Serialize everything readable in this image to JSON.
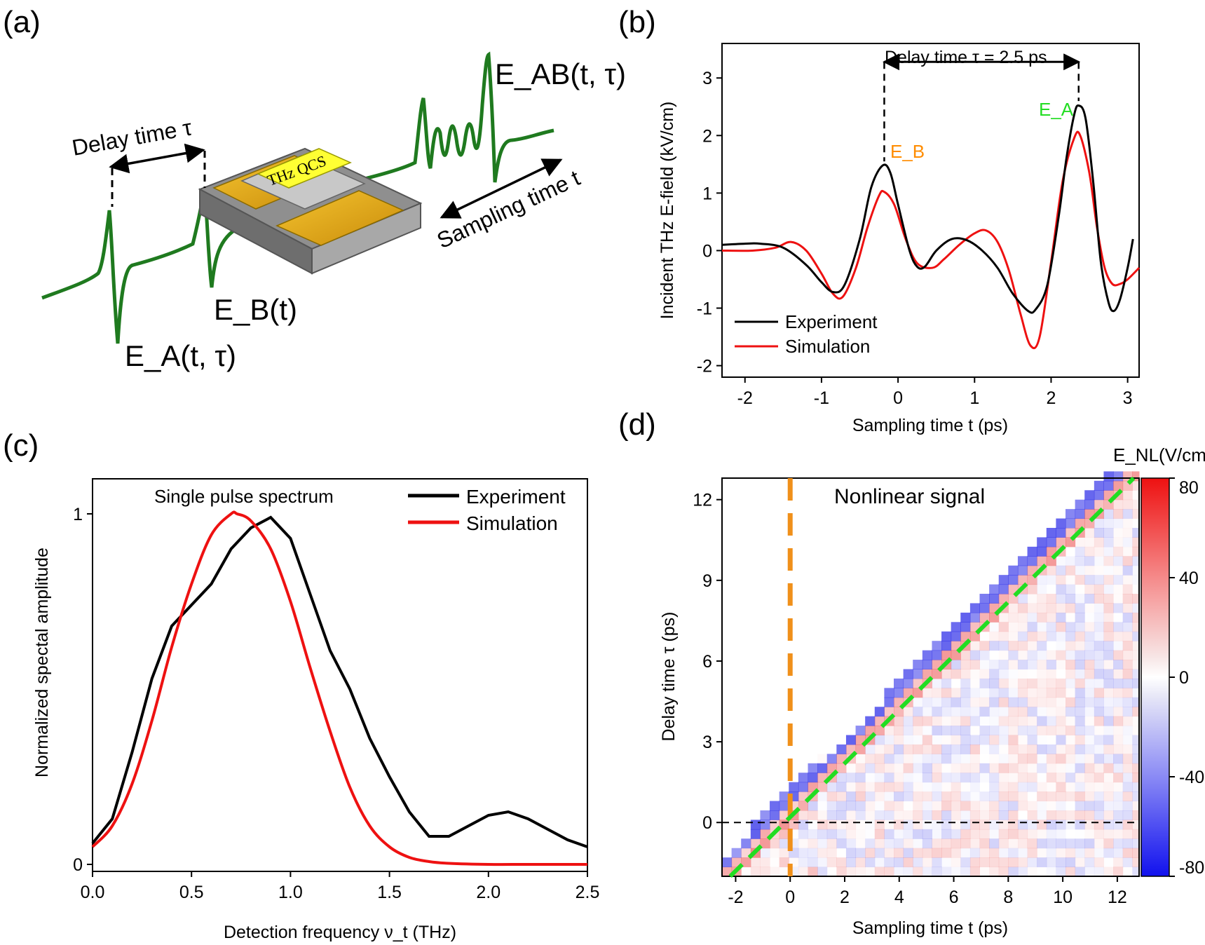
{
  "panel_labels": [
    "(a)",
    "(b)",
    "(c)",
    "(d)"
  ],
  "schematic": {
    "device_label": "THz QCS",
    "delay_label": "Delay time τ",
    "sampling_label": "Sampling time t",
    "eab_label": "E_AB(t, τ)",
    "ea_label": "E_A(t, τ)",
    "eb_label": "E_B(t)"
  },
  "chart_data": [
    {
      "id": "b",
      "type": "line",
      "xlabel": "Sampling time t (ps)",
      "ylabel": "Incident THz E-field (kV/cm)",
      "xlim": [
        -2.3,
        3.15
      ],
      "ylim": [
        -2.2,
        3.6
      ],
      "xticks": [
        -2,
        -1,
        0,
        1,
        2,
        3
      ],
      "yticks": [
        -2,
        -1,
        0,
        1,
        2,
        3
      ],
      "annotation": "Delay time τ = 2.5 ps",
      "peak_labels": [
        "E_B",
        "E_A"
      ],
      "series": [
        {
          "name": "Experiment",
          "color": "#000000",
          "x": [
            -2.3,
            -2.0,
            -1.8,
            -1.5,
            -1.2,
            -1.0,
            -0.85,
            -0.7,
            -0.5,
            -0.35,
            -0.2,
            -0.1,
            0.0,
            0.15,
            0.25,
            0.35,
            0.5,
            0.7,
            0.9,
            1.1,
            1.3,
            1.5,
            1.7,
            1.8,
            1.95,
            2.1,
            2.2,
            2.3,
            2.36,
            2.45,
            2.55,
            2.65,
            2.75,
            2.82,
            2.9,
            3.0,
            3.07
          ],
          "y": [
            0.1,
            0.12,
            0.12,
            0.05,
            -0.25,
            -0.55,
            -0.72,
            -0.6,
            0.2,
            1.1,
            1.48,
            1.35,
            0.8,
            0.0,
            -0.28,
            -0.28,
            0.0,
            0.2,
            0.18,
            0.0,
            -0.3,
            -0.75,
            -1.05,
            -1.02,
            -0.6,
            0.6,
            1.6,
            2.35,
            2.52,
            2.3,
            1.2,
            -0.2,
            -0.9,
            -1.05,
            -0.85,
            -0.3,
            0.2
          ]
        },
        {
          "name": "Simulation",
          "color": "#ee1111",
          "x": [
            -2.3,
            -1.9,
            -1.6,
            -1.4,
            -1.2,
            -1.0,
            -0.85,
            -0.72,
            -0.55,
            -0.4,
            -0.25,
            -0.18,
            -0.05,
            0.1,
            0.25,
            0.45,
            0.6,
            0.8,
            1.0,
            1.15,
            1.3,
            1.45,
            1.6,
            1.73,
            1.85,
            2.0,
            2.15,
            2.3,
            2.38,
            2.5,
            2.6,
            2.7,
            2.8,
            2.9,
            3.0,
            3.15
          ],
          "y": [
            0.0,
            0.0,
            0.05,
            0.15,
            0.0,
            -0.4,
            -0.75,
            -0.8,
            -0.3,
            0.4,
            0.95,
            1.02,
            0.8,
            0.2,
            -0.22,
            -0.3,
            -0.15,
            0.1,
            0.3,
            0.35,
            0.15,
            -0.35,
            -1.1,
            -1.65,
            -1.5,
            -0.2,
            1.2,
            1.95,
            2.0,
            1.35,
            0.4,
            -0.3,
            -0.58,
            -0.58,
            -0.5,
            -0.3
          ]
        }
      ]
    },
    {
      "id": "c",
      "type": "line",
      "xlabel": "Detection frequency ν_t (THz)",
      "ylabel": "Normalized spectal amplitude",
      "title": "Single pulse spectrum",
      "xlim": [
        0,
        2.5
      ],
      "ylim": [
        -0.02,
        1.1
      ],
      "xticks": [
        0.0,
        0.5,
        1.0,
        1.5,
        2.0,
        2.5
      ],
      "yticks": [
        0,
        1
      ],
      "series": [
        {
          "name": "Experiment",
          "color": "#000000",
          "x": [
            0,
            0.1,
            0.2,
            0.3,
            0.4,
            0.5,
            0.6,
            0.7,
            0.8,
            0.9,
            1.0,
            1.1,
            1.2,
            1.3,
            1.4,
            1.5,
            1.6,
            1.7,
            1.8,
            1.9,
            2.0,
            2.1,
            2.2,
            2.3,
            2.4,
            2.5
          ],
          "y": [
            0.06,
            0.13,
            0.32,
            0.53,
            0.68,
            0.74,
            0.8,
            0.9,
            0.96,
            0.99,
            0.93,
            0.77,
            0.61,
            0.5,
            0.36,
            0.25,
            0.15,
            0.08,
            0.08,
            0.11,
            0.14,
            0.15,
            0.13,
            0.1,
            0.07,
            0.05
          ]
        },
        {
          "name": "Simulation",
          "color": "#ee1111",
          "x": [
            0,
            0.1,
            0.2,
            0.3,
            0.4,
            0.5,
            0.6,
            0.7,
            0.73,
            0.8,
            0.9,
            1.0,
            1.1,
            1.2,
            1.3,
            1.4,
            1.5,
            1.6,
            1.7,
            1.8,
            2.0,
            2.2,
            2.5
          ],
          "y": [
            0.05,
            0.11,
            0.23,
            0.41,
            0.62,
            0.8,
            0.94,
            1.0,
            1.0,
            0.98,
            0.9,
            0.75,
            0.56,
            0.38,
            0.22,
            0.11,
            0.05,
            0.02,
            0.008,
            0.003,
            0.0,
            0.0,
            0.0
          ]
        }
      ]
    },
    {
      "id": "d",
      "type": "heatmap",
      "title": "Nonlinear signal",
      "xlabel": "Sampling time t (ps)",
      "ylabel": "Delay time τ (ps)",
      "xlim": [
        -2.5,
        12.8
      ],
      "ylim": [
        -2,
        12.8
      ],
      "xticks": [
        -2,
        0,
        2,
        4,
        6,
        8,
        10,
        12
      ],
      "yticks": [
        0,
        3,
        6,
        9,
        12
      ],
      "colorbar_label": "E_NL(V/cm)",
      "colorbar_ticks": [
        80,
        40,
        0,
        -40,
        -80
      ],
      "colorbar_range": [
        -80,
        80
      ],
      "guide_lines": {
        "vertical_dashed_t": 0,
        "horizontal_dashed_tau": 0,
        "diagonal": "τ = t"
      }
    }
  ]
}
